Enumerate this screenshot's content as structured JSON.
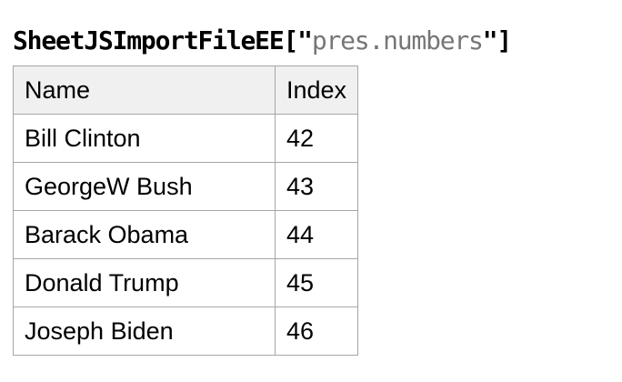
{
  "title": {
    "prefix": "SheetJSImportFileEE[\"",
    "string": "pres.numbers",
    "suffix": "\"]"
  },
  "table": {
    "columns": [
      "Name",
      "Index"
    ],
    "rows": [
      {
        "name": "Bill Clinton",
        "index": "42"
      },
      {
        "name": "GeorgeW Bush",
        "index": "43"
      },
      {
        "name": "Barack Obama",
        "index": "44"
      },
      {
        "name": "Donald Trump",
        "index": "45"
      },
      {
        "name": "Joseph Biden",
        "index": "46"
      }
    ]
  },
  "colors": {
    "title_color": "#000000",
    "string_color": "#767676",
    "text_color": "#000000",
    "border_color": "#a6a6a6",
    "header_bg": "#f0f0f0",
    "page_bg": "#ffffff"
  }
}
